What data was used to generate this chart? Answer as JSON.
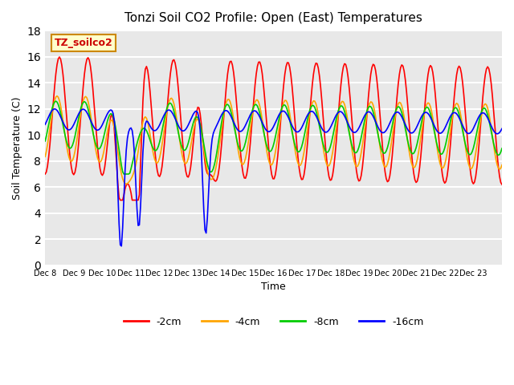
{
  "title": "Tonzi Soil CO2 Profile: Open (East) Temperatures",
  "ylabel": "Soil Temperature (C)",
  "xlabel": "Time",
  "legend_label": "TZ_soilco2",
  "ylim": [
    0,
    18
  ],
  "series_labels": [
    "-2cm",
    "-4cm",
    "-8cm",
    "-16cm"
  ],
  "series_colors": [
    "#ff0000",
    "#ffa500",
    "#00cc00",
    "#0000ff"
  ],
  "background_color": "#ffffff",
  "plot_bg_color": "#e8e8e8",
  "grid_color": "#ffffff",
  "title_color": "#000000",
  "n_days": 16,
  "start_day": 8,
  "tick_labels": [
    "Dec 8",
    "Dec 9",
    "Dec 10",
    "Dec 11",
    "Dec 12",
    "Dec 13",
    "Dec 14",
    "Dec 15",
    "Dec 16",
    "Dec 17",
    "Dec 18",
    "Dec 19",
    "Dec 20",
    "Dec 21",
    "Dec 22",
    "Dec 23"
  ],
  "points_per_day": 24
}
